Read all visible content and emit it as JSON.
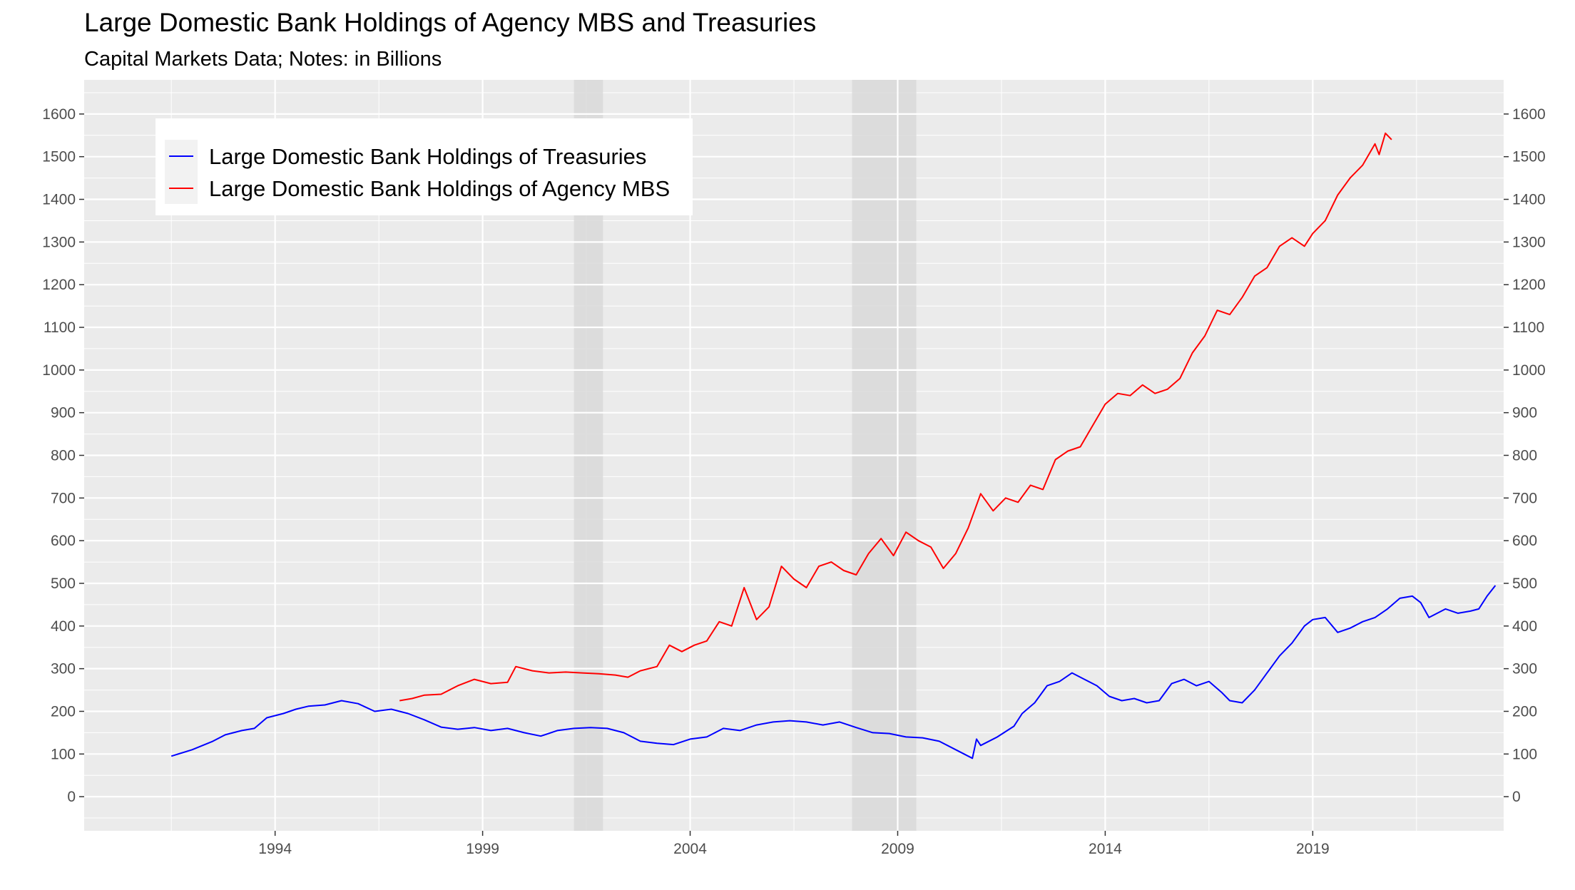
{
  "chart_data": {
    "type": "line",
    "title": "Large Domestic Bank Holdings of Agency MBS and Treasuries",
    "subtitle": "Capital Markets Data; Notes: in Billions",
    "xlabel": "",
    "ylabel": "",
    "xlim": [
      1989.4,
      2023.6
    ],
    "ylim": [
      -80,
      1680
    ],
    "x_ticks": [
      1994,
      1999,
      2004,
      2009,
      2014,
      2019
    ],
    "y_ticks": [
      0,
      100,
      200,
      300,
      400,
      500,
      600,
      700,
      800,
      900,
      1000,
      1100,
      1200,
      1300,
      1400,
      1500,
      1600
    ],
    "y_axis_right_duplicate": true,
    "grid": true,
    "legend_position": "top-left",
    "recession_shading": [
      {
        "start": 2001.2,
        "end": 2001.9
      },
      {
        "start": 2007.9,
        "end": 2009.45
      }
    ],
    "colors": {
      "panel_background": "#ebebeb",
      "grid_major": "#ffffff",
      "recession": "#d9d9d9",
      "treasuries": "#0000ff",
      "mbs": "#ff0000"
    },
    "series": [
      {
        "name": "Large Domestic Bank Holdings of Treasuries",
        "color": "#0000ff",
        "points": [
          [
            1991.5,
            95
          ],
          [
            1992.0,
            110
          ],
          [
            1992.5,
            130
          ],
          [
            1992.8,
            145
          ],
          [
            1993.2,
            155
          ],
          [
            1993.5,
            160
          ],
          [
            1993.8,
            185
          ],
          [
            1994.2,
            195
          ],
          [
            1994.5,
            205
          ],
          [
            1994.8,
            212
          ],
          [
            1995.2,
            215
          ],
          [
            1995.6,
            225
          ],
          [
            1996.0,
            218
          ],
          [
            1996.4,
            200
          ],
          [
            1996.8,
            205
          ],
          [
            1997.2,
            195
          ],
          [
            1997.6,
            180
          ],
          [
            1998.0,
            163
          ],
          [
            1998.4,
            158
          ],
          [
            1998.8,
            162
          ],
          [
            1999.2,
            155
          ],
          [
            1999.6,
            160
          ],
          [
            2000.0,
            150
          ],
          [
            2000.4,
            142
          ],
          [
            2000.8,
            155
          ],
          [
            2001.2,
            160
          ],
          [
            2001.6,
            162
          ],
          [
            2002.0,
            160
          ],
          [
            2002.4,
            150
          ],
          [
            2002.8,
            130
          ],
          [
            2003.2,
            125
          ],
          [
            2003.6,
            122
          ],
          [
            2004.0,
            135
          ],
          [
            2004.4,
            140
          ],
          [
            2004.8,
            160
          ],
          [
            2005.2,
            155
          ],
          [
            2005.6,
            168
          ],
          [
            2006.0,
            175
          ],
          [
            2006.4,
            178
          ],
          [
            2006.8,
            175
          ],
          [
            2007.2,
            168
          ],
          [
            2007.6,
            175
          ],
          [
            2008.0,
            162
          ],
          [
            2008.4,
            150
          ],
          [
            2008.8,
            148
          ],
          [
            2009.2,
            140
          ],
          [
            2009.6,
            138
          ],
          [
            2010.0,
            130
          ],
          [
            2010.4,
            110
          ],
          [
            2010.8,
            90
          ],
          [
            2010.9,
            135
          ],
          [
            2011.0,
            120
          ],
          [
            2011.4,
            140
          ],
          [
            2011.8,
            165
          ],
          [
            2012.0,
            195
          ],
          [
            2012.3,
            220
          ],
          [
            2012.6,
            260
          ],
          [
            2012.9,
            270
          ],
          [
            2013.2,
            290
          ],
          [
            2013.5,
            275
          ],
          [
            2013.8,
            260
          ],
          [
            2014.1,
            235
          ],
          [
            2014.4,
            225
          ],
          [
            2014.7,
            230
          ],
          [
            2015.0,
            220
          ],
          [
            2015.3,
            225
          ],
          [
            2015.6,
            265
          ],
          [
            2015.9,
            275
          ],
          [
            2016.2,
            260
          ],
          [
            2016.5,
            270
          ],
          [
            2016.8,
            245
          ],
          [
            2017.0,
            225
          ],
          [
            2017.3,
            220
          ],
          [
            2017.6,
            250
          ],
          [
            2017.9,
            290
          ],
          [
            2018.2,
            330
          ],
          [
            2018.5,
            360
          ],
          [
            2018.8,
            400
          ],
          [
            2019.0,
            415
          ],
          [
            2019.3,
            420
          ],
          [
            2019.6,
            385
          ],
          [
            2019.9,
            395
          ],
          [
            2020.2,
            410
          ],
          [
            2020.5,
            420
          ],
          [
            2020.8,
            440
          ],
          [
            2021.1,
            465
          ],
          [
            2021.4,
            470
          ],
          [
            2021.6,
            455
          ],
          [
            2021.8,
            420
          ],
          [
            2022.0,
            430
          ],
          [
            2022.2,
            440
          ],
          [
            2022.5,
            430
          ],
          [
            2022.8,
            435
          ],
          [
            2023.0,
            440
          ],
          [
            2023.2,
            470
          ],
          [
            2023.4,
            495
          ]
        ]
      },
      {
        "name": "Large Domestic Bank Holdings of Agency MBS",
        "color": "#ff0000",
        "points": [
          [
            1997.0,
            225
          ],
          [
            1997.3,
            230
          ],
          [
            1997.6,
            238
          ],
          [
            1998.0,
            240
          ],
          [
            1998.4,
            260
          ],
          [
            1998.8,
            275
          ],
          [
            1999.2,
            265
          ],
          [
            1999.6,
            268
          ],
          [
            1999.8,
            305
          ],
          [
            2000.2,
            295
          ],
          [
            2000.6,
            290
          ],
          [
            2001.0,
            292
          ],
          [
            2001.4,
            290
          ],
          [
            2001.8,
            288
          ],
          [
            2002.2,
            285
          ],
          [
            2002.5,
            280
          ],
          [
            2002.8,
            295
          ],
          [
            2003.2,
            305
          ],
          [
            2003.5,
            355
          ],
          [
            2003.8,
            340
          ],
          [
            2004.1,
            355
          ],
          [
            2004.4,
            365
          ],
          [
            2004.7,
            410
          ],
          [
            2005.0,
            400
          ],
          [
            2005.3,
            490
          ],
          [
            2005.6,
            415
          ],
          [
            2005.9,
            445
          ],
          [
            2006.2,
            540
          ],
          [
            2006.5,
            510
          ],
          [
            2006.8,
            490
          ],
          [
            2007.1,
            540
          ],
          [
            2007.4,
            550
          ],
          [
            2007.7,
            530
          ],
          [
            2008.0,
            520
          ],
          [
            2008.3,
            570
          ],
          [
            2008.6,
            605
          ],
          [
            2008.9,
            565
          ],
          [
            2009.2,
            620
          ],
          [
            2009.5,
            600
          ],
          [
            2009.8,
            585
          ],
          [
            2010.1,
            535
          ],
          [
            2010.4,
            570
          ],
          [
            2010.7,
            630
          ],
          [
            2011.0,
            710
          ],
          [
            2011.3,
            670
          ],
          [
            2011.6,
            700
          ],
          [
            2011.9,
            690
          ],
          [
            2012.2,
            730
          ],
          [
            2012.5,
            720
          ],
          [
            2012.8,
            790
          ],
          [
            2013.1,
            810
          ],
          [
            2013.4,
            820
          ],
          [
            2013.7,
            870
          ],
          [
            2014.0,
            920
          ],
          [
            2014.3,
            945
          ],
          [
            2014.6,
            940
          ],
          [
            2014.9,
            965
          ],
          [
            2015.2,
            945
          ],
          [
            2015.5,
            955
          ],
          [
            2015.8,
            980
          ],
          [
            2016.1,
            1040
          ],
          [
            2016.4,
            1080
          ],
          [
            2016.7,
            1140
          ],
          [
            2017.0,
            1130
          ],
          [
            2017.3,
            1170
          ],
          [
            2017.6,
            1220
          ],
          [
            2017.9,
            1240
          ],
          [
            2018.2,
            1290
          ],
          [
            2018.5,
            1310
          ],
          [
            2018.8,
            1290
          ],
          [
            2019.0,
            1320
          ],
          [
            2019.3,
            1350
          ],
          [
            2019.6,
            1410
          ],
          [
            2019.9,
            1450
          ],
          [
            2020.2,
            1480
          ],
          [
            2020.5,
            1530
          ],
          [
            2020.6,
            1505
          ],
          [
            2020.75,
            1555
          ],
          [
            2020.9,
            1540
          ]
        ]
      }
    ]
  }
}
